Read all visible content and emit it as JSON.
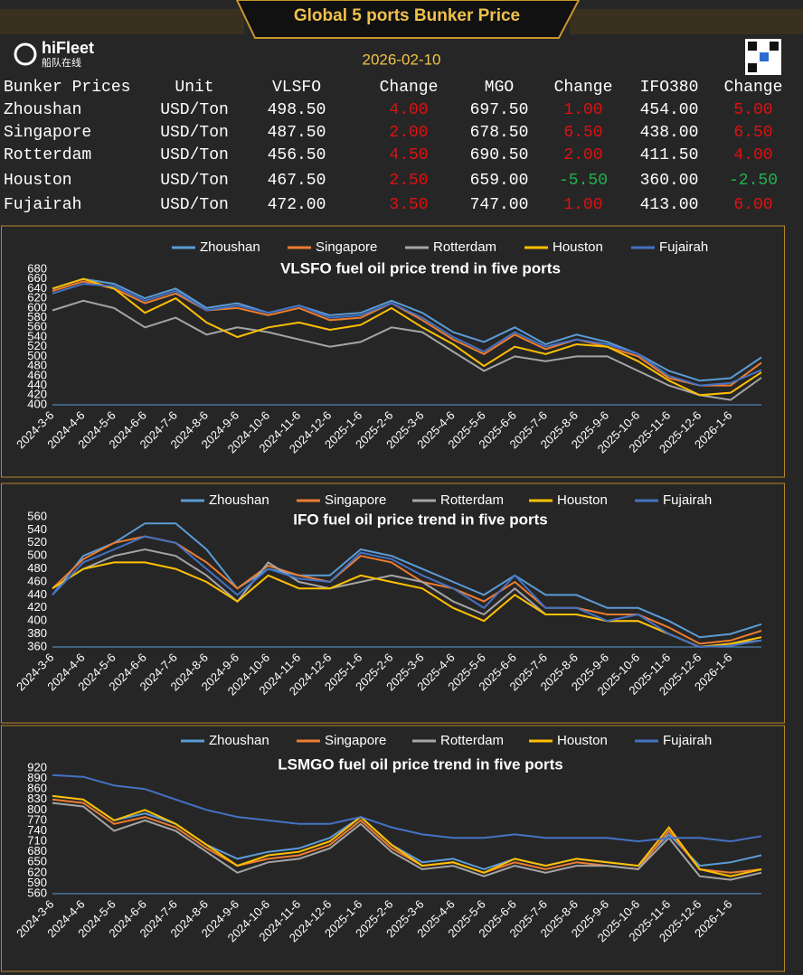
{
  "header": {
    "title": "Global 5 ports  Bunker Price",
    "brand": "hiFleet",
    "brand_cn": "船队在线",
    "date": "2026-02-10"
  },
  "table": {
    "columns": [
      "Bunker Prices",
      "Unit",
      "VLSFO",
      "Change",
      "MGO",
      "Change",
      "IFO380",
      "Change"
    ],
    "rows": [
      [
        "Zhoushan",
        "USD/Ton",
        "498.50",
        "4.00",
        "697.50",
        "1.00",
        "454.00",
        "5.00"
      ],
      [
        "Singapore",
        "USD/Ton",
        "487.50",
        "2.00",
        "678.50",
        "6.50",
        "438.00",
        "6.50"
      ],
      [
        "Rotterdam",
        "USD/Ton",
        "456.50",
        "4.50",
        "690.50",
        "2.00",
        "411.50",
        "4.00"
      ],
      [
        "Houston",
        "USD/Ton",
        "467.50",
        "2.50",
        "659.00",
        "-5.50",
        "360.00",
        "-2.50"
      ],
      [
        "Fujairah",
        "USD/Ton",
        "472.00",
        "3.50",
        "747.00",
        "1.00",
        "413.00",
        "6.00"
      ]
    ]
  },
  "chart_data": [
    {
      "type": "line",
      "title": "VLSFO fuel oil price trend in five ports",
      "categories": [
        "2024-3-6",
        "2024-4-6",
        "2024-5-6",
        "2024-6-6",
        "2024-7-6",
        "2024-8-6",
        "2024-9-6",
        "2024-10-6",
        "2024-11-6",
        "2024-12-6",
        "2025-1-6",
        "2025-2-6",
        "2025-3-6",
        "2025-4-6",
        "2025-5-6",
        "2025-6-6",
        "2025-7-6",
        "2025-8-6",
        "2025-9-6",
        "2025-10-6",
        "2025-11-6",
        "2025-12-6",
        "2026-1-6",
        null
      ],
      "series": [
        {
          "name": "Zhoushan",
          "color": "#5b9bd5",
          "values": [
            640,
            660,
            650,
            620,
            640,
            600,
            610,
            590,
            605,
            585,
            590,
            615,
            590,
            550,
            530,
            560,
            525,
            545,
            530,
            505,
            470,
            450,
            455,
            498
          ]
        },
        {
          "name": "Singapore",
          "color": "#ed7d31",
          "values": [
            635,
            655,
            640,
            610,
            630,
            595,
            600,
            585,
            600,
            575,
            580,
            610,
            575,
            535,
            505,
            545,
            515,
            535,
            520,
            500,
            455,
            440,
            440,
            487
          ]
        },
        {
          "name": "Rotterdam",
          "color": "#a5a5a5",
          "values": [
            595,
            615,
            600,
            560,
            580,
            545,
            560,
            550,
            535,
            520,
            530,
            560,
            550,
            510,
            470,
            500,
            490,
            500,
            500,
            470,
            440,
            420,
            410,
            456
          ]
        },
        {
          "name": "Houston",
          "color": "#ffc000",
          "values": [
            640,
            660,
            640,
            590,
            620,
            570,
            540,
            560,
            570,
            555,
            565,
            600,
            560,
            525,
            480,
            520,
            505,
            525,
            520,
            490,
            450,
            420,
            425,
            467
          ]
        },
        {
          "name": "Fujairah",
          "color": "#4472c4",
          "values": [
            630,
            650,
            645,
            615,
            635,
            595,
            605,
            590,
            605,
            580,
            585,
            610,
            580,
            540,
            510,
            550,
            520,
            535,
            525,
            505,
            460,
            440,
            445,
            472
          ]
        }
      ],
      "ylim": [
        400,
        680
      ],
      "yticks": [
        400,
        420,
        440,
        460,
        480,
        500,
        520,
        540,
        560,
        580,
        600,
        620,
        640,
        660,
        680
      ]
    },
    {
      "type": "line",
      "title": "IFO fuel oil price trend in five ports",
      "categories": [
        "2024-3-6",
        "2024-4-6",
        "2024-5-6",
        "2024-6-6",
        "2024-7-6",
        "2024-8-6",
        "2024-9-6",
        "2024-10-6",
        "2024-11-6",
        "2024-12-6",
        "2025-1-6",
        "2025-2-6",
        "2025-3-6",
        "2025-4-6",
        "2025-5-6",
        "2025-6-6",
        "2025-7-6",
        "2025-8-6",
        "2025-9-6",
        "2025-10-6",
        "2025-11-6",
        "2025-12-6",
        "2026-1-6",
        null
      ],
      "series": [
        {
          "name": "Zhoushan",
          "color": "#5b9bd5",
          "values": [
            440,
            500,
            520,
            550,
            550,
            510,
            450,
            480,
            470,
            470,
            510,
            500,
            480,
            460,
            440,
            470,
            440,
            440,
            420,
            420,
            400,
            375,
            380,
            395
          ]
        },
        {
          "name": "Singapore",
          "color": "#ed7d31",
          "values": [
            450,
            495,
            520,
            530,
            520,
            490,
            450,
            485,
            470,
            460,
            500,
            490,
            460,
            450,
            430,
            460,
            420,
            420,
            410,
            410,
            390,
            365,
            370,
            385
          ]
        },
        {
          "name": "Rotterdam",
          "color": "#a5a5a5",
          "values": [
            450,
            480,
            500,
            510,
            500,
            470,
            430,
            490,
            460,
            450,
            460,
            470,
            460,
            430,
            410,
            450,
            410,
            410,
            400,
            400,
            380,
            360,
            365,
            370
          ]
        },
        {
          "name": "Houston",
          "color": "#ffc000",
          "values": [
            450,
            480,
            490,
            490,
            480,
            460,
            430,
            470,
            450,
            450,
            470,
            460,
            450,
            420,
            400,
            440,
            410,
            410,
            400,
            400,
            380,
            360,
            365,
            375
          ]
        },
        {
          "name": "Fujairah",
          "color": "#4472c4",
          "values": [
            440,
            490,
            510,
            530,
            520,
            480,
            440,
            480,
            465,
            460,
            505,
            495,
            470,
            450,
            420,
            470,
            420,
            420,
            400,
            410,
            380,
            360,
            362,
            370
          ]
        }
      ],
      "ylim": [
        360,
        560
      ],
      "yticks": [
        360,
        380,
        400,
        420,
        440,
        460,
        480,
        500,
        520,
        540,
        560
      ]
    },
    {
      "type": "line",
      "title": "LSMGO fuel oil price trend in five ports",
      "categories": [
        "2024-3-6",
        "2024-4-6",
        "2024-5-6",
        "2024-6-6",
        "2024-7-6",
        "2024-8-6",
        "2024-9-6",
        "2024-10-6",
        "2024-11-6",
        "2024-12-6",
        "2025-1-6",
        "2025-2-6",
        "2025-3-6",
        "2025-4-6",
        "2025-5-6",
        "2025-6-6",
        "2025-7-6",
        "2025-8-6",
        "2025-9-6",
        "2025-10-6",
        "2025-11-6",
        "2025-12-6",
        "2026-1-6",
        null
      ],
      "series": [
        {
          "name": "Zhoushan",
          "color": "#5b9bd5",
          "values": [
            840,
            830,
            770,
            790,
            760,
            700,
            660,
            680,
            690,
            720,
            780,
            700,
            650,
            660,
            630,
            660,
            640,
            660,
            650,
            640,
            730,
            640,
            650,
            670
          ]
        },
        {
          "name": "Singapore",
          "color": "#ed7d31",
          "values": [
            830,
            820,
            760,
            780,
            750,
            690,
            640,
            660,
            670,
            700,
            770,
            690,
            640,
            650,
            620,
            650,
            630,
            650,
            640,
            630,
            740,
            630,
            620,
            630
          ]
        },
        {
          "name": "Rotterdam",
          "color": "#a5a5a5",
          "values": [
            820,
            810,
            740,
            770,
            740,
            680,
            620,
            650,
            660,
            690,
            760,
            680,
            630,
            640,
            610,
            640,
            620,
            640,
            640,
            630,
            720,
            610,
            600,
            620
          ]
        },
        {
          "name": "Houston",
          "color": "#ffc000",
          "values": [
            840,
            830,
            770,
            800,
            760,
            700,
            640,
            670,
            680,
            710,
            780,
            700,
            640,
            650,
            620,
            660,
            640,
            660,
            650,
            640,
            750,
            630,
            610,
            630
          ]
        },
        {
          "name": "Fujairah",
          "color": "#4472c4",
          "values": [
            900,
            895,
            870,
            860,
            830,
            800,
            780,
            770,
            760,
            760,
            780,
            750,
            730,
            720,
            720,
            730,
            720,
            720,
            720,
            710,
            720,
            720,
            710,
            725
          ]
        }
      ],
      "ylim": [
        560,
        920
      ],
      "yticks": [
        560,
        590,
        620,
        650,
        680,
        710,
        740,
        770,
        800,
        830,
        860,
        890,
        920
      ]
    }
  ]
}
